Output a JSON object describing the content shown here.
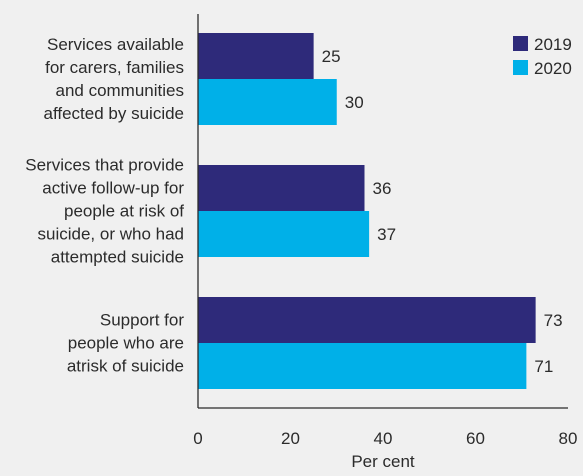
{
  "chart_data": {
    "type": "bar",
    "orientation": "horizontal",
    "categories": [
      [
        "Services available",
        "for carers, families",
        "and communities",
        "affected by suicide"
      ],
      [
        "Services that provide",
        "active follow-up for",
        "people at risk of",
        "suicide, or who had",
        "attempted suicide"
      ],
      [
        "Support for",
        "people who are",
        "atrisk of suicide"
      ]
    ],
    "series": [
      {
        "name": "2019",
        "values": [
          25,
          36,
          73
        ],
        "color": "#2e2a7a"
      },
      {
        "name": "2020",
        "values": [
          30,
          37,
          71
        ],
        "color": "#00b0e8"
      }
    ],
    "xlabel": "Per cent",
    "ylabel": "",
    "title": "",
    "xlim": [
      0,
      80
    ],
    "xticks": [
      "0",
      "20",
      "40",
      "60",
      "80"
    ],
    "grid": false,
    "legend_position": "top-right"
  },
  "colors": {
    "background": "#f0f0f0",
    "axis": "#2b2b2b",
    "text": "#2b2b2b"
  }
}
